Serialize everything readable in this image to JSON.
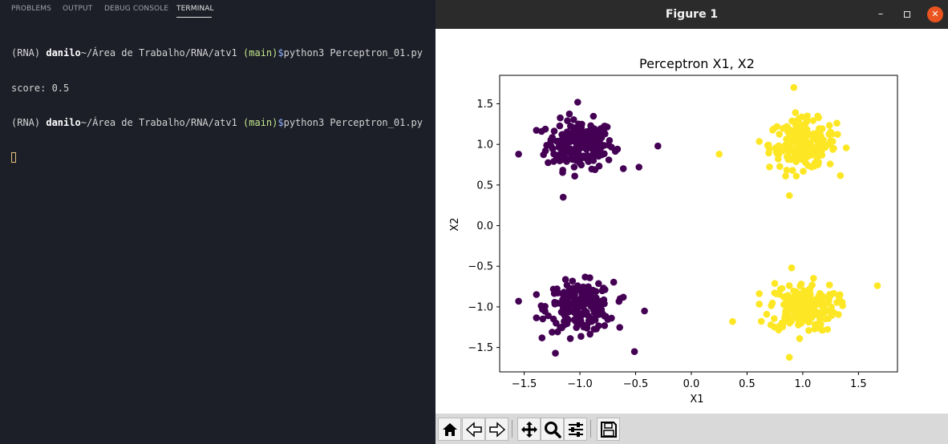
{
  "terminal": {
    "tabs": [
      "PROBLEMS",
      "OUTPUT",
      "DEBUG CONSOLE",
      "TERMINAL"
    ],
    "active_tab": "TERMINAL",
    "lines": [
      {
        "env": "(RNA) ",
        "user": "danilo",
        "path": "~/Área de Trabalho/RNA/atv1 ",
        "branch": "(main)",
        "prompt": "$",
        "cmd": "python3 Perceptron_01.py"
      },
      {
        "output": "score: 0.5"
      },
      {
        "env": "(RNA) ",
        "user": "danilo",
        "path": "~/Área de Trabalho/RNA/atv1 ",
        "branch": "(main)",
        "prompt": "$",
        "cmd": "python3 Perceptron_01.py"
      }
    ]
  },
  "window": {
    "title": "Figure 1",
    "minimize_icon": "minimize-icon",
    "maximize_icon": "maximize-icon",
    "close_icon": "close-icon"
  },
  "toolbar": {
    "buttons": [
      "home-icon",
      "back-icon",
      "forward-icon",
      "pan-icon",
      "zoom-icon",
      "configure-subplots-icon",
      "save-icon"
    ]
  },
  "chart_data": {
    "type": "scatter",
    "title": "Perceptron X1, X2",
    "xlabel": "X1",
    "ylabel": "X2",
    "xlim": [
      -1.72,
      1.85
    ],
    "ylim": [
      -1.8,
      1.85
    ],
    "xticks": [
      "−1.5",
      "−1.0",
      "−0.5",
      "0.0",
      "0.5",
      "1.0",
      "1.5"
    ],
    "xtick_values": [
      -1.5,
      -1.0,
      -0.5,
      0.0,
      0.5,
      1.0,
      1.5
    ],
    "yticks": [
      "−1.5",
      "−1.0",
      "−0.5",
      "0.0",
      "0.5",
      "1.0",
      "1.5"
    ],
    "ytick_values": [
      -1.5,
      -1.0,
      -0.5,
      0.0,
      0.5,
      1.0,
      1.5
    ],
    "grid": false,
    "colors": {
      "class0": "#440154",
      "class1": "#fde725"
    },
    "clusters": [
      {
        "class": 0,
        "center": [
          -1.0,
          1.0
        ],
        "spread": 0.15,
        "count": 200
      },
      {
        "class": 1,
        "center": [
          1.0,
          1.0
        ],
        "spread": 0.15,
        "count": 200
      },
      {
        "class": 0,
        "center": [
          -1.0,
          -1.0
        ],
        "spread": 0.15,
        "count": 200
      },
      {
        "class": 1,
        "center": [
          1.0,
          -1.0
        ],
        "spread": 0.15,
        "count": 200
      }
    ],
    "outliers": [
      {
        "class": 0,
        "x": -1.55,
        "y": 0.88
      },
      {
        "class": 0,
        "x": -0.3,
        "y": 0.98
      },
      {
        "class": 0,
        "x": -1.02,
        "y": 1.52
      },
      {
        "class": 0,
        "x": -1.15,
        "y": 0.35
      },
      {
        "class": 0,
        "x": -0.47,
        "y": 0.72
      },
      {
        "class": 0,
        "x": -0.42,
        "y": -1.05
      },
      {
        "class": 0,
        "x": -1.22,
        "y": -1.57
      },
      {
        "class": 0,
        "x": -0.51,
        "y": -1.55
      },
      {
        "class": 0,
        "x": -1.55,
        "y": -0.93
      },
      {
        "class": 1,
        "x": 0.25,
        "y": 0.88
      },
      {
        "class": 1,
        "x": 0.92,
        "y": 1.7
      },
      {
        "class": 1,
        "x": 0.88,
        "y": 0.37
      },
      {
        "class": 1,
        "x": 0.37,
        "y": -1.18
      },
      {
        "class": 1,
        "x": 1.67,
        "y": -0.74
      },
      {
        "class": 1,
        "x": 0.88,
        "y": -1.62
      },
      {
        "class": 1,
        "x": 0.9,
        "y": -0.52
      }
    ]
  }
}
